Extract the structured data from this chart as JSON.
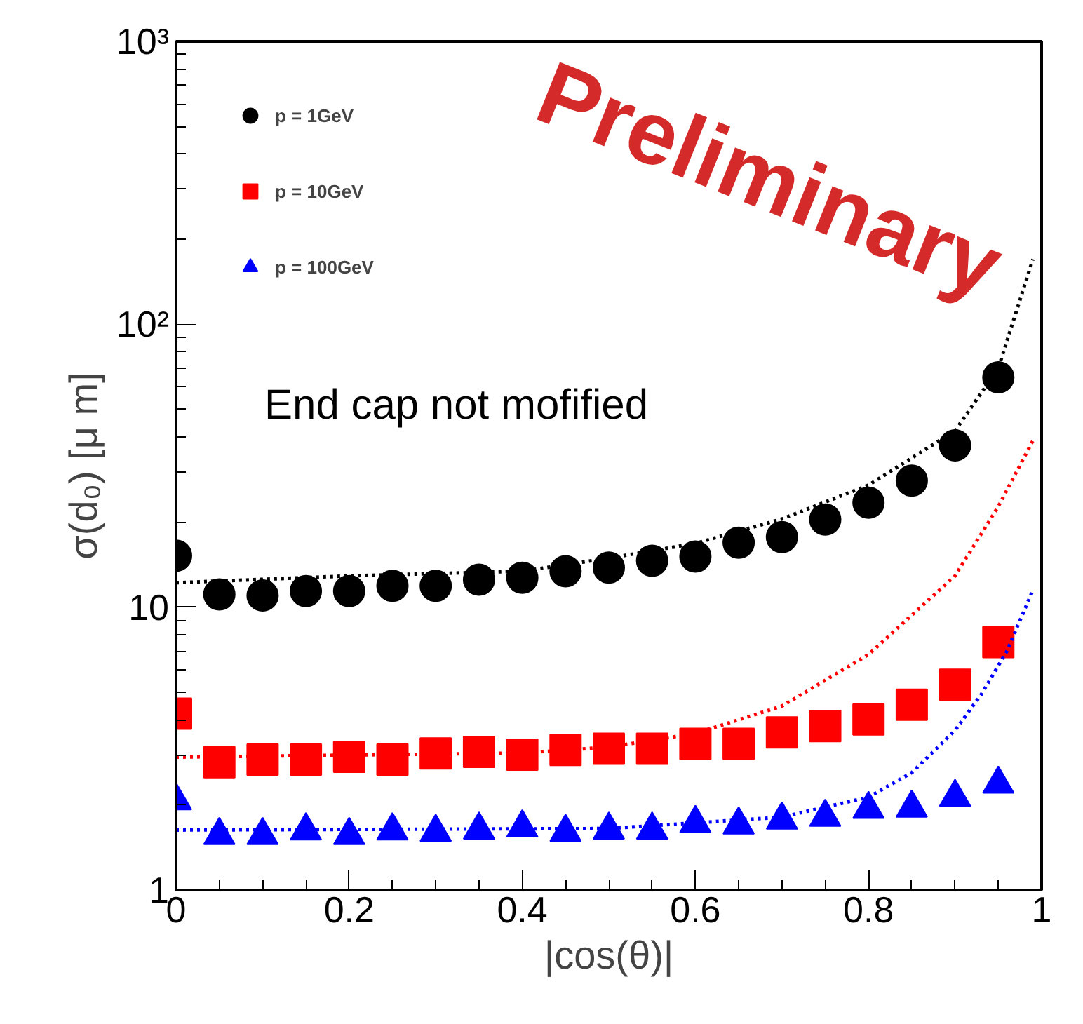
{
  "chart_data": {
    "type": "scatter",
    "xlabel": "|cos(θ)|",
    "ylabel": "σ(d₀) [μ m]",
    "annotations": [
      "Preliminary",
      "End cap not mofified"
    ],
    "x": [
      0,
      0.05,
      0.1,
      0.15,
      0.2,
      0.25,
      0.3,
      0.35,
      0.4,
      0.45,
      0.5,
      0.55,
      0.6,
      0.65,
      0.7,
      0.75,
      0.8,
      0.85,
      0.9,
      0.95
    ],
    "series": [
      {
        "name": "p = 1GeV",
        "color": "#000000",
        "marker": "circle",
        "values": [
          15.2,
          11.1,
          11.0,
          11.4,
          11.4,
          11.9,
          11.9,
          12.5,
          12.7,
          13.4,
          13.8,
          14.6,
          15.1,
          16.9,
          17.7,
          20.4,
          23.4,
          28.0,
          37.3,
          64.9
        ]
      },
      {
        "name": "p = 10GeV",
        "color": "#ff0000",
        "marker": "square",
        "values": [
          4.2,
          2.83,
          2.89,
          2.89,
          2.96,
          2.89,
          3.04,
          3.08,
          3.01,
          3.13,
          3.16,
          3.16,
          3.29,
          3.29,
          3.61,
          3.8,
          4.01,
          4.52,
          5.32,
          7.52
        ]
      },
      {
        "name": "p = 100GeV",
        "color": "#0000ff",
        "marker": "triangle",
        "values": [
          2.07,
          1.56,
          1.56,
          1.62,
          1.56,
          1.62,
          1.6,
          1.63,
          1.66,
          1.6,
          1.63,
          1.63,
          1.72,
          1.7,
          1.77,
          1.81,
          1.93,
          1.95,
          2.13,
          2.37
        ]
      },
      {
        "type": "line",
        "color": "#000000",
        "line_style": "dotted",
        "x": [
          0,
          0.2,
          0.4,
          0.5,
          0.6,
          0.7,
          0.8,
          0.9,
          0.95,
          0.99
        ],
        "values": [
          12.2,
          12.9,
          13.4,
          14.9,
          16.8,
          20.5,
          27,
          42,
          70,
          170
        ]
      },
      {
        "type": "line",
        "color": "#ff0000",
        "line_style": "dotted",
        "x": [
          0,
          0.2,
          0.4,
          0.5,
          0.6,
          0.7,
          0.8,
          0.9,
          0.95,
          0.99
        ],
        "values": [
          2.95,
          3.0,
          3.05,
          3.2,
          3.58,
          4.47,
          6.8,
          12.9,
          22.7,
          38.8
        ]
      },
      {
        "type": "line",
        "color": "#0000ff",
        "line_style": "dotted",
        "x": [
          0,
          0.5,
          0.7,
          0.8,
          0.85,
          0.9,
          0.93,
          0.96,
          0.99
        ],
        "values": [
          1.63,
          1.65,
          1.81,
          2.13,
          2.6,
          3.67,
          4.9,
          7.0,
          11.5
        ]
      }
    ],
    "xlim": [
      0,
      1
    ],
    "xticks": [
      0,
      0.2,
      0.4,
      0.6,
      0.8,
      1
    ],
    "ylim": [
      1,
      1000
    ],
    "yticks": [
      1,
      10,
      {
        "value": 100,
        "label": "10²"
      },
      {
        "value": 1000,
        "label": "10³"
      }
    ],
    "log": "y",
    "grid": false,
    "legend": "top left"
  }
}
